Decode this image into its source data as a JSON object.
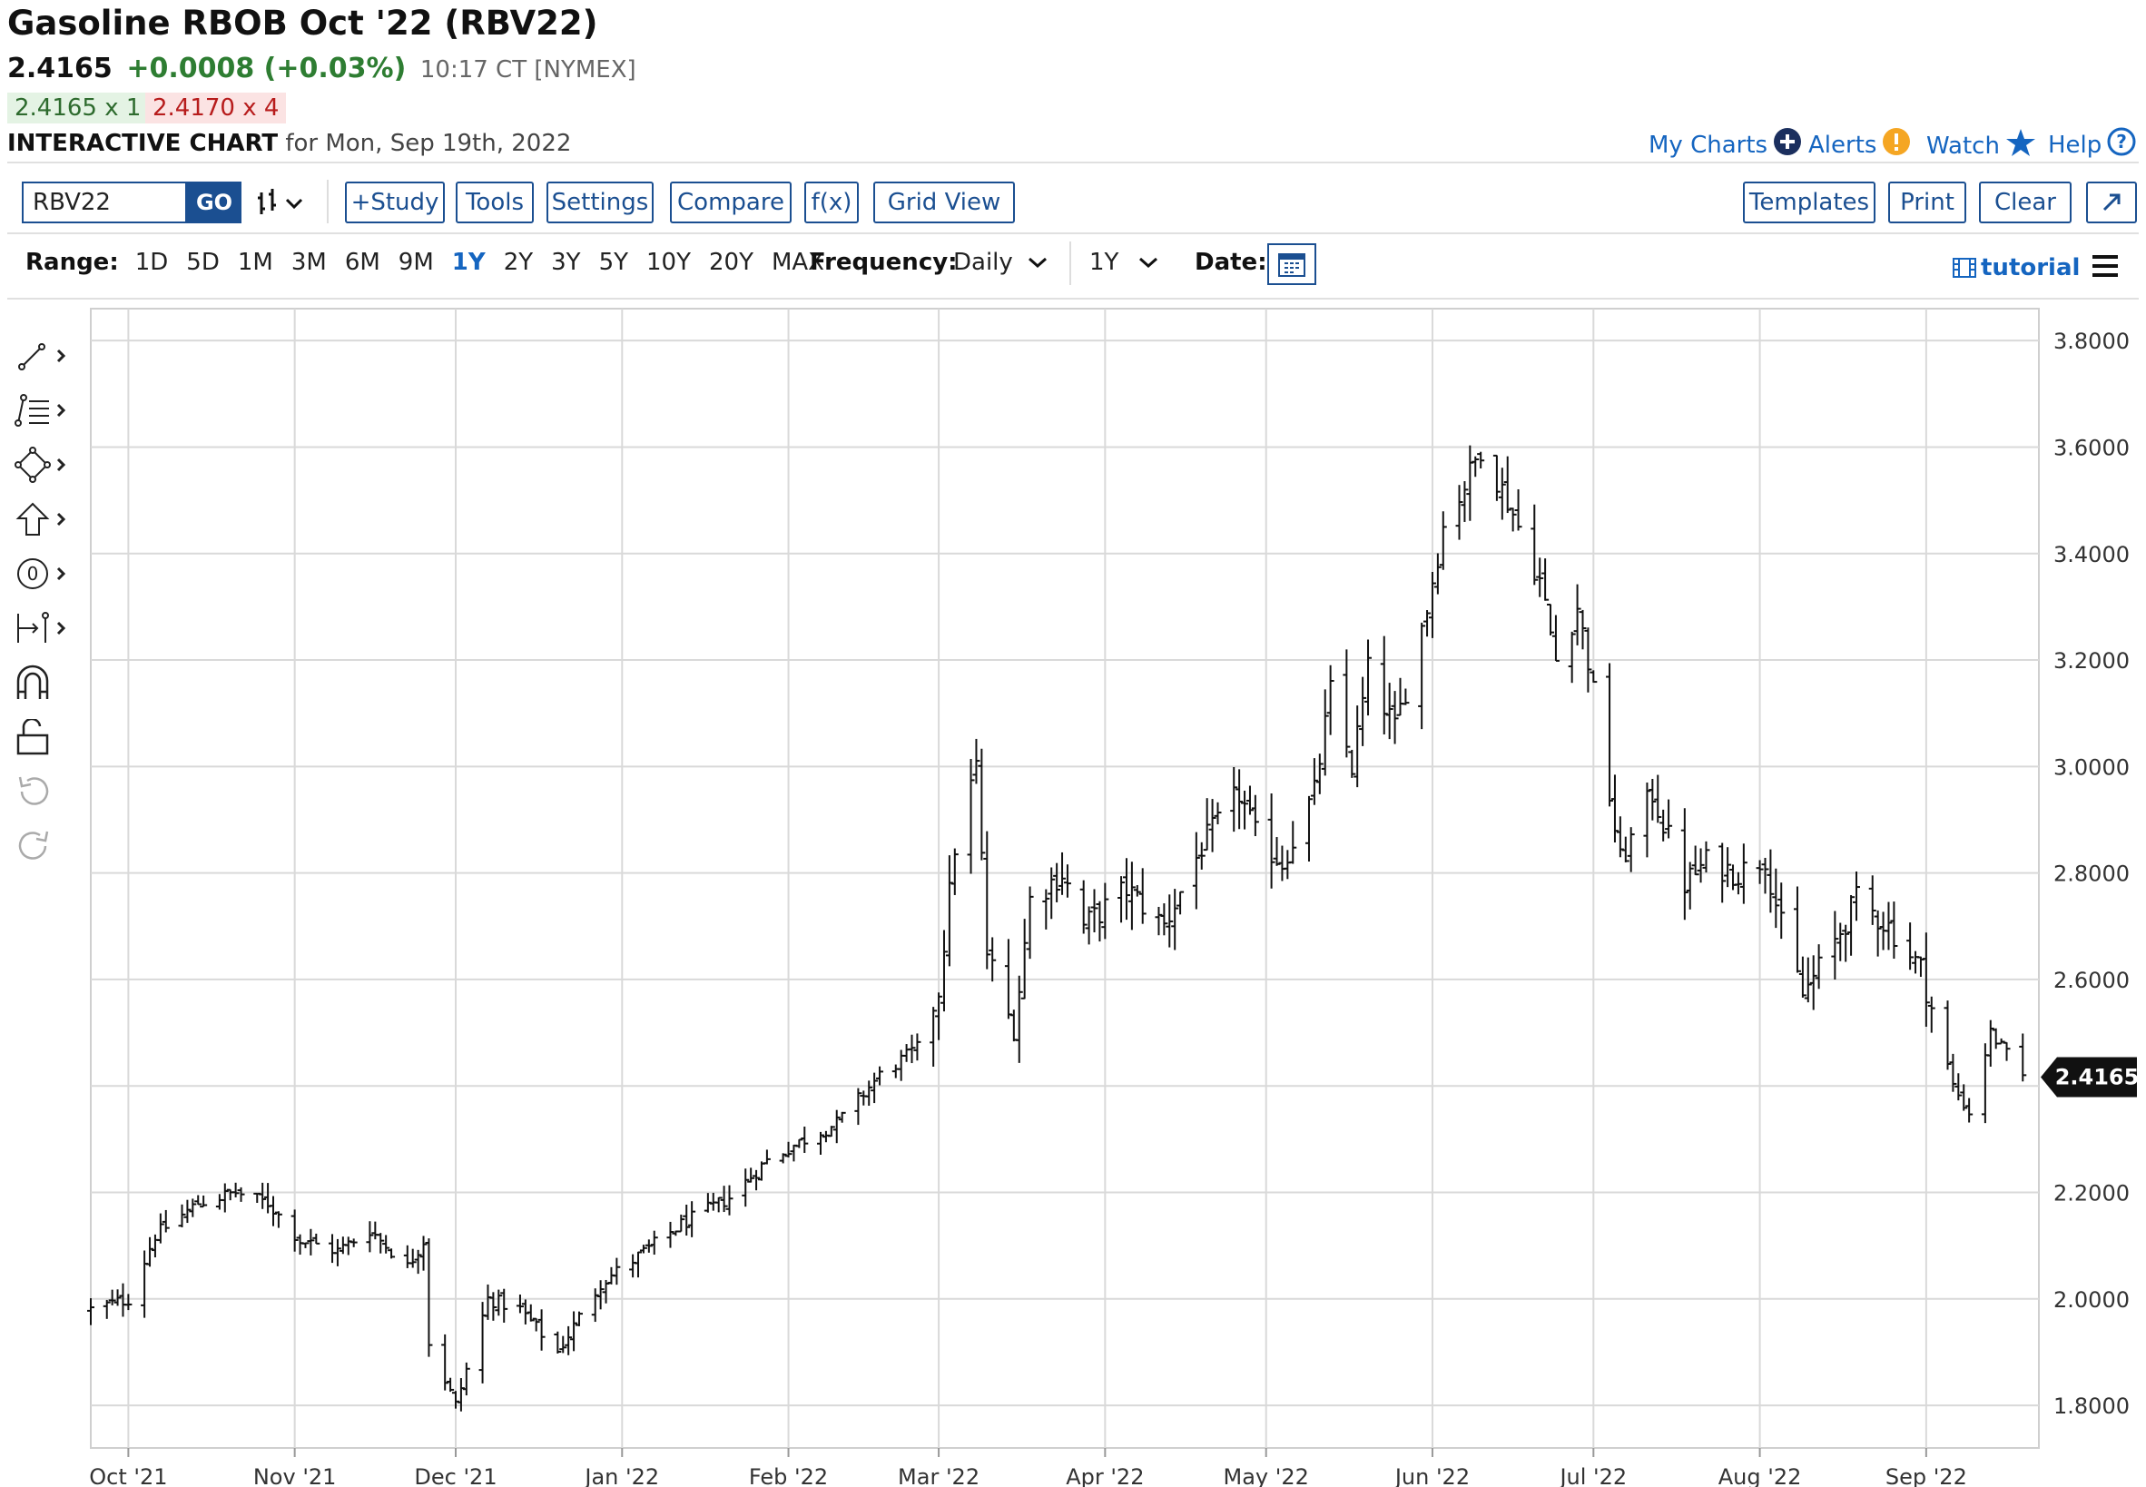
{
  "header": {
    "title": "Gasoline RBOB Oct '22 (RBV22)",
    "last_price": "2.4165",
    "change": "+0.0008 (+0.03%)",
    "time": "10:17 CT [NYMEX]",
    "bid": "2.4165 x 1",
    "ask": "2.4170 x 4",
    "chart_label": "INTERACTIVE CHART",
    "chart_date": "for Mon, Sep 19th, 2022"
  },
  "top_links": {
    "my_charts": "My Charts",
    "alerts": "Alerts",
    "watch": "Watch",
    "help": "Help"
  },
  "toolbar": {
    "symbol": "RBV22",
    "go": "GO",
    "study": "+Study",
    "tools": "Tools",
    "settings": "Settings",
    "compare": "Compare",
    "fx": "f(x)",
    "grid_view": "Grid View",
    "templates": "Templates",
    "print": "Print",
    "clear": "Clear"
  },
  "range_bar": {
    "label": "Range:",
    "options": [
      "1D",
      "5D",
      "1M",
      "3M",
      "6M",
      "9M",
      "1Y",
      "2Y",
      "3Y",
      "5Y",
      "10Y",
      "20Y",
      "MAX"
    ],
    "selected": "1Y",
    "frequency_label": "Frequency:",
    "frequency": "Daily",
    "period": "1Y",
    "date_label": "Date:",
    "tutorial": "tutorial"
  },
  "left_tools": [
    "line-tool-icon",
    "fib-tool-icon",
    "shape-tool-icon",
    "arrow-tool-icon",
    "annotation-tool-icon",
    "measure-tool-icon",
    "magnet-icon",
    "lock-icon",
    "undo-icon",
    "redo-icon"
  ],
  "colors": {
    "accent": "#1565c0",
    "border": "#1b4f91",
    "up": "#2e7d32",
    "down": "#b71c1c",
    "bar": "#111111",
    "grid": "#d9d9d9"
  },
  "chart_data": {
    "type": "ohlc",
    "x_labels": [
      "Oct '21",
      "Nov '21",
      "Dec '21",
      "Jan '22",
      "Feb '22",
      "Mar '22",
      "Apr '22",
      "May '22",
      "Jun '22",
      "Jul '22",
      "Aug '22",
      "Sep '22"
    ],
    "y_ticks": [
      "3.8000",
      "3.6000",
      "3.4000",
      "3.2000",
      "3.0000",
      "2.8000",
      "2.6000",
      "2.2000",
      "2.0000",
      "1.8000"
    ],
    "ylim": [
      1.72,
      3.86
    ],
    "last_value": "2.4165",
    "anchors": [
      [
        "2021-09-24",
        1.98
      ],
      [
        "2021-10-01",
        2.0
      ],
      [
        "2021-10-06",
        2.12
      ],
      [
        "2021-10-14",
        2.18
      ],
      [
        "2021-10-21",
        2.2
      ],
      [
        "2021-10-27",
        2.18
      ],
      [
        "2021-11-02",
        2.11
      ],
      [
        "2021-11-09",
        2.09
      ],
      [
        "2021-11-15",
        2.13
      ],
      [
        "2021-11-22",
        2.06
      ],
      [
        "2021-11-25",
        2.11
      ],
      [
        "2021-11-26",
        1.92
      ],
      [
        "2021-12-01",
        1.8
      ],
      [
        "2021-12-07",
        2.0
      ],
      [
        "2021-12-13",
        1.98
      ],
      [
        "2021-12-20",
        1.9
      ],
      [
        "2021-12-28",
        2.03
      ],
      [
        "2022-01-04",
        2.08
      ],
      [
        "2022-01-12",
        2.14
      ],
      [
        "2022-01-21",
        2.19
      ],
      [
        "2022-01-28",
        2.26
      ],
      [
        "2022-02-04",
        2.3
      ],
      [
        "2022-02-10",
        2.33
      ],
      [
        "2022-02-18",
        2.42
      ],
      [
        "2022-02-25",
        2.47
      ],
      [
        "2022-03-01",
        2.58
      ],
      [
        "2022-03-04",
        2.85
      ],
      [
        "2022-03-08",
        3.0
      ],
      [
        "2022-03-10",
        2.65
      ],
      [
        "2022-03-15",
        2.5
      ],
      [
        "2022-03-18",
        2.75
      ],
      [
        "2022-03-24",
        2.8
      ],
      [
        "2022-03-28",
        2.7
      ],
      [
        "2022-04-05",
        2.77
      ],
      [
        "2022-04-12",
        2.7
      ],
      [
        "2022-04-19",
        2.85
      ],
      [
        "2022-04-26",
        2.95
      ],
      [
        "2022-04-29",
        2.87
      ],
      [
        "2022-05-04",
        2.82
      ],
      [
        "2022-05-10",
        2.95
      ],
      [
        "2022-05-13",
        3.14
      ],
      [
        "2022-05-17",
        3.0
      ],
      [
        "2022-05-20",
        3.18
      ],
      [
        "2022-05-25",
        3.07
      ],
      [
        "2022-05-31",
        3.3
      ],
      [
        "2022-06-03",
        3.45
      ],
      [
        "2022-06-08",
        3.55
      ],
      [
        "2022-06-10",
        3.6
      ],
      [
        "2022-06-15",
        3.5
      ],
      [
        "2022-06-21",
        3.35
      ],
      [
        "2022-06-24",
        3.2
      ],
      [
        "2022-06-28",
        3.3
      ],
      [
        "2022-06-30",
        3.2
      ],
      [
        "2022-07-06",
        2.82
      ],
      [
        "2022-07-12",
        2.95
      ],
      [
        "2022-07-18",
        2.78
      ],
      [
        "2022-07-22",
        2.82
      ],
      [
        "2022-07-28",
        2.8
      ],
      [
        "2022-08-02",
        2.83
      ],
      [
        "2022-08-05",
        2.7
      ],
      [
        "2022-08-09",
        2.57
      ],
      [
        "2022-08-15",
        2.67
      ],
      [
        "2022-08-19",
        2.75
      ],
      [
        "2022-08-25",
        2.7
      ],
      [
        "2022-08-31",
        2.62
      ],
      [
        "2022-09-06",
        2.4
      ],
      [
        "2022-09-09",
        2.35
      ],
      [
        "2022-09-13",
        2.5
      ],
      [
        "2022-09-19",
        2.4165
      ]
    ]
  }
}
